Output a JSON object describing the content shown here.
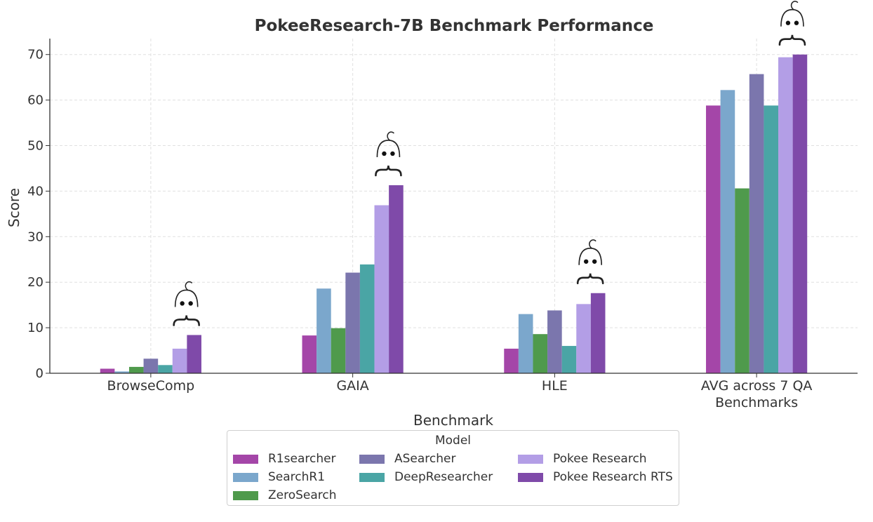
{
  "chart_data": {
    "type": "bar",
    "title": "PokeeResearch-7B Benchmark Performance",
    "xlabel": "Benchmark",
    "ylabel": "Score",
    "ylim": [
      0,
      73.5
    ],
    "yticks": [
      "0",
      "10",
      "20",
      "30",
      "40",
      "50",
      "60",
      "70"
    ],
    "grid": true,
    "categories": [
      "BrowseComp",
      "GAIA",
      "HLE",
      "AVG across 7 QA\nBenchmarks"
    ],
    "series": [
      {
        "name": "R1searcher",
        "color": "#a446a8",
        "values": [
          1.0,
          8.3,
          5.4,
          58.8
        ]
      },
      {
        "name": "SearchR1",
        "color": "#7ba7cc",
        "values": [
          0.4,
          18.6,
          13.0,
          62.2
        ]
      },
      {
        "name": "ZeroSearch",
        "color": "#4f9a4c",
        "values": [
          1.4,
          9.9,
          8.6,
          40.6
        ]
      },
      {
        "name": "ASearcher",
        "color": "#7b76ad",
        "values": [
          3.2,
          22.1,
          13.8,
          65.7
        ]
      },
      {
        "name": "DeepResearcher",
        "color": "#4aa5a5",
        "values": [
          1.8,
          23.9,
          6.0,
          58.8
        ]
      },
      {
        "name": "Pokee Research",
        "color": "#b39ee6",
        "values": [
          5.4,
          36.9,
          15.2,
          69.4
        ]
      },
      {
        "name": "Pokee Research RTS",
        "color": "#7f4aa9",
        "values": [
          8.4,
          41.3,
          17.6,
          70.0
        ]
      }
    ],
    "mascot_marker": "baby-face-icon",
    "legend": {
      "title": "Model",
      "placement": "bottom-center"
    }
  }
}
